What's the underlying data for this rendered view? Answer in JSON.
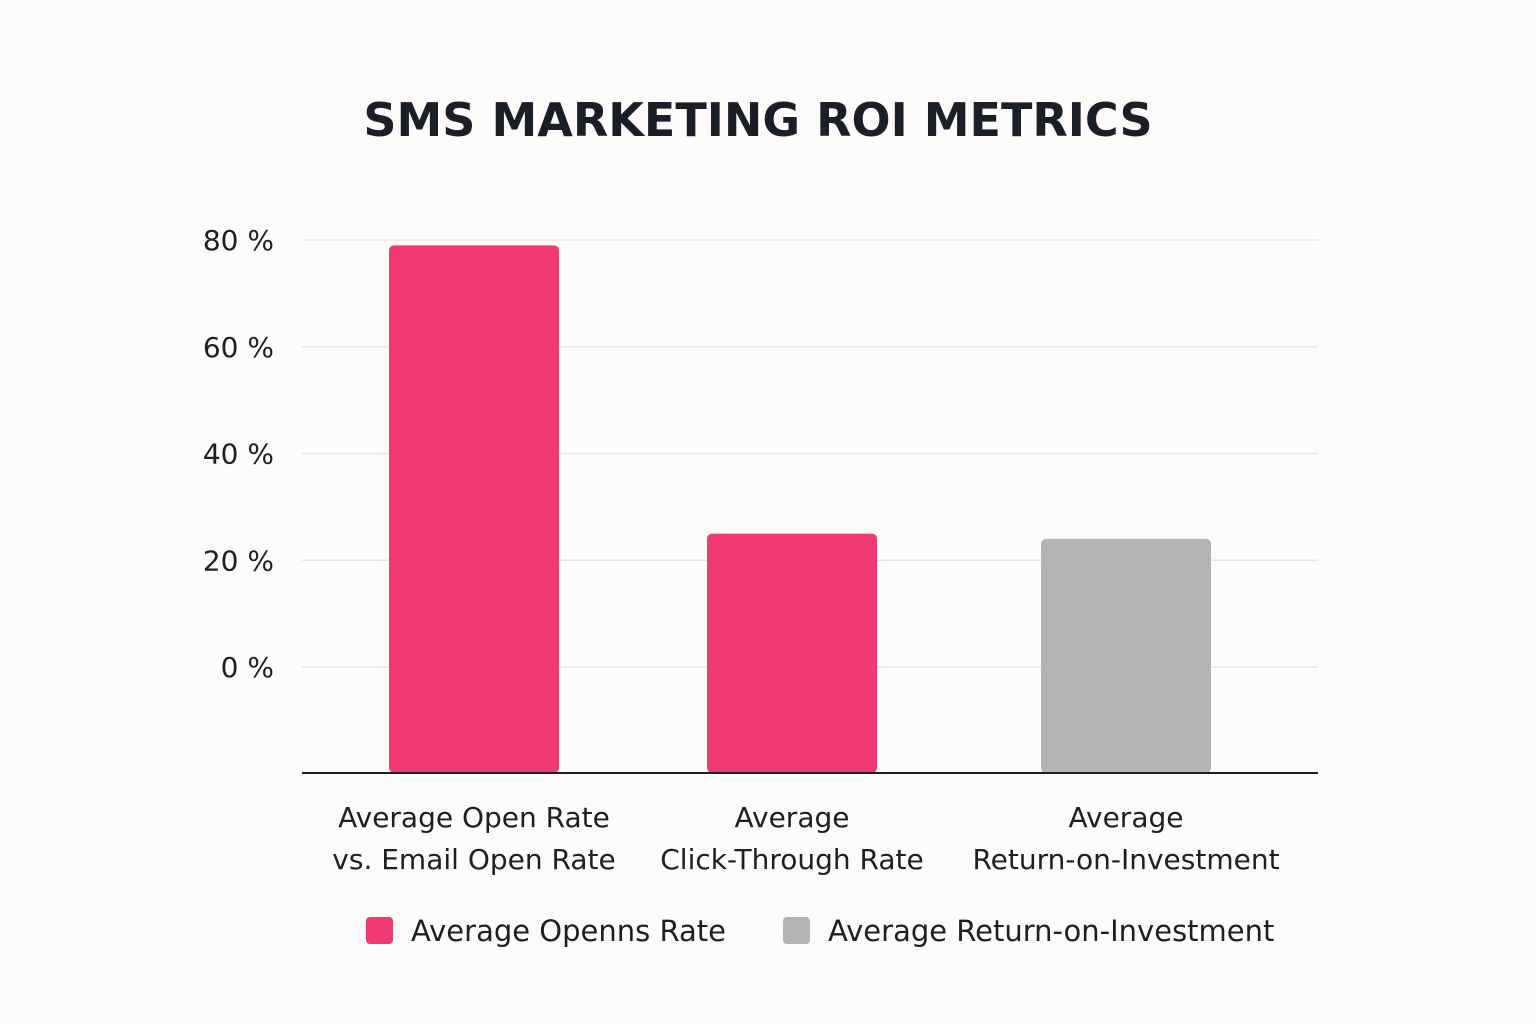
{
  "chart_data": {
    "type": "bar",
    "title": "SMS MARKETING ROI METRICS",
    "xlabel": "",
    "ylabel": "",
    "ylim": [
      -20,
      80
    ],
    "yticks": [
      80,
      60,
      40,
      20,
      0
    ],
    "ytick_labels": [
      "80 %",
      "60 %",
      "40 %",
      "20 %",
      "0 %"
    ],
    "grid": true,
    "legend_position": "bottom",
    "categories": [
      [
        "Average Open Rate",
        "vs. Email Open Rate"
      ],
      [
        "Average",
        "Click-Through Rate"
      ],
      [
        "Average",
        "Return-on-Investment"
      ]
    ],
    "values": [
      79,
      25,
      24
    ],
    "bar_colors": [
      "#ef3a73",
      "#ef3a73",
      "#b3b3b3"
    ],
    "legend": [
      {
        "name": "Average Openns Rate",
        "color": "#ef3a73"
      },
      {
        "name": "Average Return-on-Investment",
        "color": "#b3b3b3"
      }
    ]
  }
}
